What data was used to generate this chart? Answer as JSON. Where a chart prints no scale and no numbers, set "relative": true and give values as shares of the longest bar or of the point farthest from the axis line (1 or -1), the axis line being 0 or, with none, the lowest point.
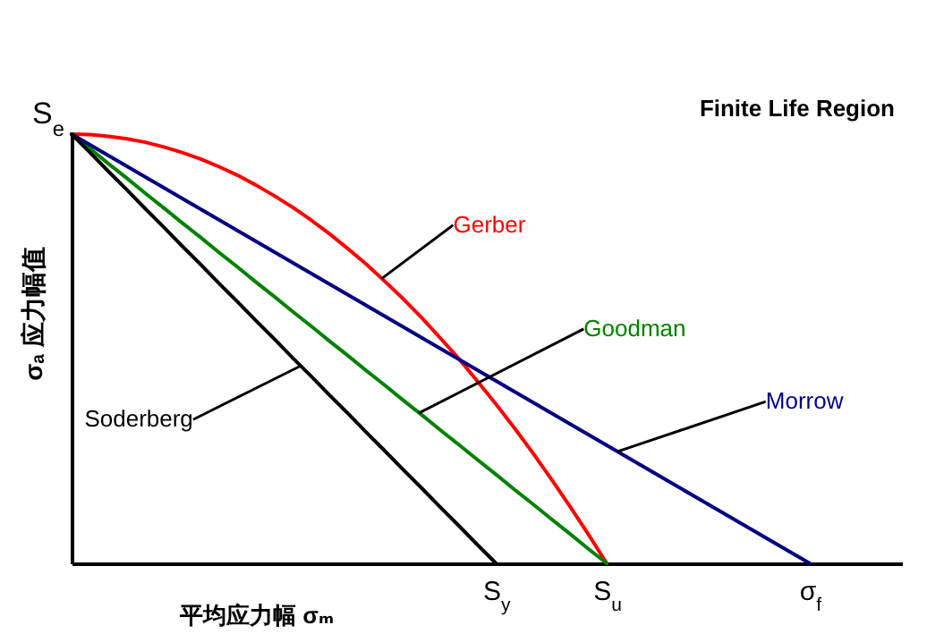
{
  "chart_data": {
    "type": "line",
    "relative": true,
    "xlabel": "平均应力幅 σₘ",
    "ylabel": "σₐ 应力幅值",
    "marker": "none",
    "line_style": "solid",
    "categories": [
      null,
      null,
      null,
      null,
      null,
      null,
      null,
      null,
      null,
      null,
      null,
      null,
      null,
      null,
      null,
      null,
      null,
      null,
      null,
      null,
      null,
      null,
      null,
      "S$_{y}$",
      null,
      null,
      null,
      null,
      null,
      "S$_{u}$",
      null,
      null,
      null,
      null,
      null,
      null,
      null,
      null,
      null,
      null,
      "σ$_{f}$",
      null,
      null,
      null,
      null,
      null
    ],
    "annotations": [
      "Finite Life Region",
      "S$_{e}$"
    ],
    "series": [
      {
        "name": "Gerber",
        "color": "#ff0000",
        "values": [
          1,
          0.999,
          0.995,
          0.989,
          0.981,
          0.97,
          0.957,
          0.942,
          0.924,
          0.904,
          0.881,
          0.856,
          0.829,
          0.799,
          0.767,
          0.732,
          0.696,
          0.656,
          0.615,
          0.571,
          0.524,
          0.476,
          0.424,
          0.371,
          0.315,
          0.257,
          0.196,
          0.133,
          0.068,
          0,
          null,
          null,
          null,
          null,
          null,
          null,
          null,
          null,
          null,
          null,
          null,
          null,
          null,
          null,
          null,
          null
        ]
      },
      {
        "name": "Goodman",
        "color": "#008000",
        "values": [
          1,
          0.966,
          0.931,
          0.897,
          0.862,
          0.828,
          0.793,
          0.759,
          0.724,
          0.69,
          0.655,
          0.621,
          0.586,
          0.552,
          0.517,
          0.483,
          0.448,
          0.414,
          0.379,
          0.345,
          0.31,
          0.276,
          0.241,
          0.207,
          0.172,
          0.138,
          0.103,
          0.069,
          0.034,
          0,
          null,
          null,
          null,
          null,
          null,
          null,
          null,
          null,
          null,
          null,
          null,
          null,
          null,
          null,
          null,
          null
        ]
      },
      {
        "name": "Morrow",
        "color": "#000080",
        "values": [
          1,
          0.975,
          0.95,
          0.925,
          0.9,
          0.875,
          0.85,
          0.825,
          0.8,
          0.775,
          0.75,
          0.725,
          0.7,
          0.675,
          0.65,
          0.625,
          0.6,
          0.575,
          0.55,
          0.525,
          0.5,
          0.475,
          0.45,
          0.425,
          0.4,
          0.375,
          0.35,
          0.325,
          0.3,
          0.275,
          0.25,
          0.225,
          0.2,
          0.175,
          0.15,
          0.125,
          0.1,
          0.075,
          0.05,
          0.025,
          0,
          null,
          null,
          null,
          null,
          null
        ]
      },
      {
        "name": "Soderberg",
        "color": "#000000",
        "values": [
          1,
          0.957,
          0.913,
          0.87,
          0.826,
          0.783,
          0.739,
          0.696,
          0.652,
          0.609,
          0.565,
          0.522,
          0.478,
          0.435,
          0.391,
          0.348,
          0.304,
          0.261,
          0.217,
          0.174,
          0.13,
          0.087,
          0.043,
          0,
          null,
          null,
          null,
          null,
          null,
          null,
          null,
          null,
          null,
          null,
          null,
          null,
          null,
          null,
          null,
          null,
          null,
          null,
          null,
          null,
          null,
          null
        ]
      }
    ]
  }
}
